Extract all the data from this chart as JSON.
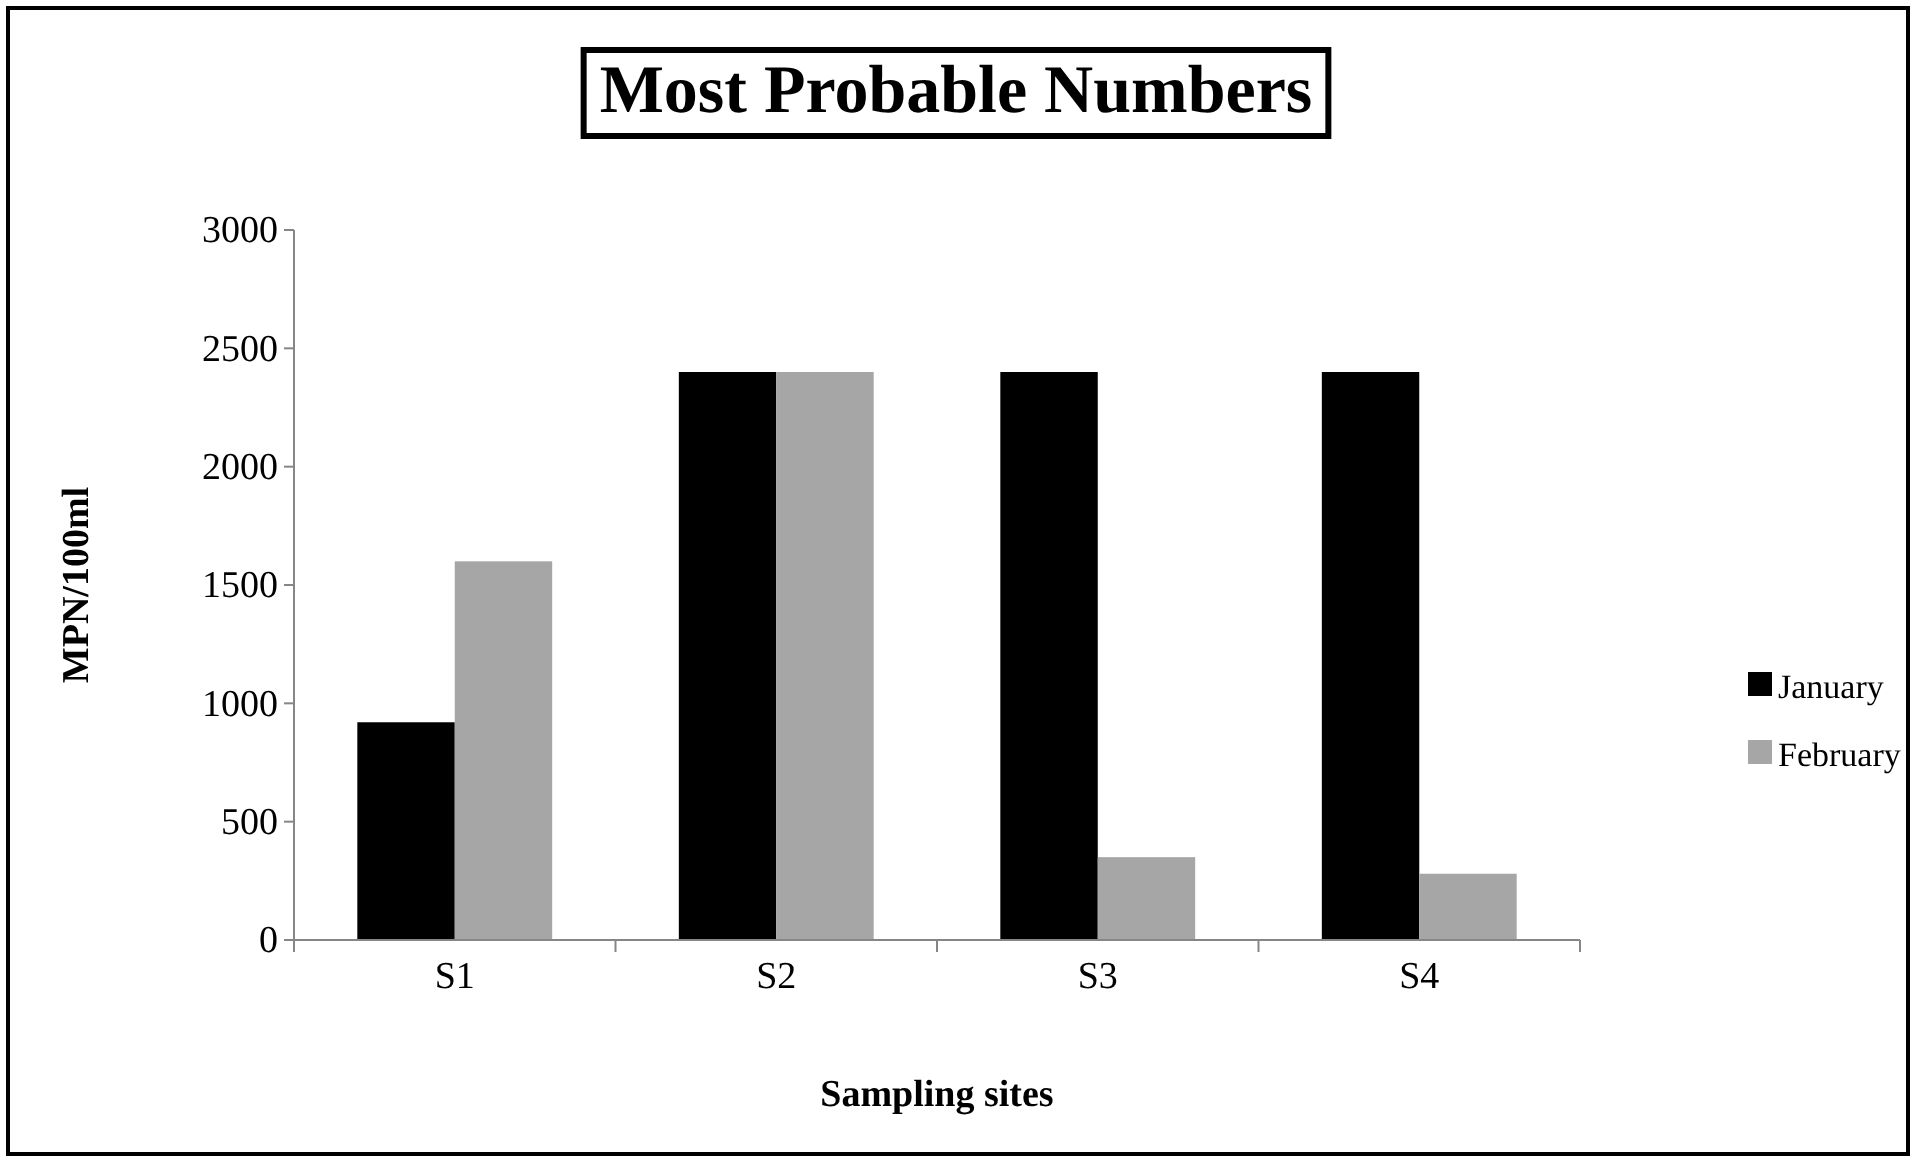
{
  "chart_data": {
    "type": "bar",
    "title": "Most Probable Numbers",
    "xlabel": "Sampling sites",
    "ylabel": "MPN/100ml",
    "categories": [
      "S1",
      "S2",
      "S3",
      "S4"
    ],
    "series": [
      {
        "name": "January",
        "color": "#000000",
        "values": [
          920,
          2400,
          2400,
          2400
        ]
      },
      {
        "name": "February",
        "color": "#a6a6a6",
        "values": [
          1600,
          2400,
          350,
          280
        ]
      }
    ],
    "ylim": [
      0,
      3000
    ],
    "yticks": [
      0,
      500,
      1000,
      1500,
      2000,
      2500,
      3000
    ],
    "grid": false,
    "legend": "right"
  }
}
